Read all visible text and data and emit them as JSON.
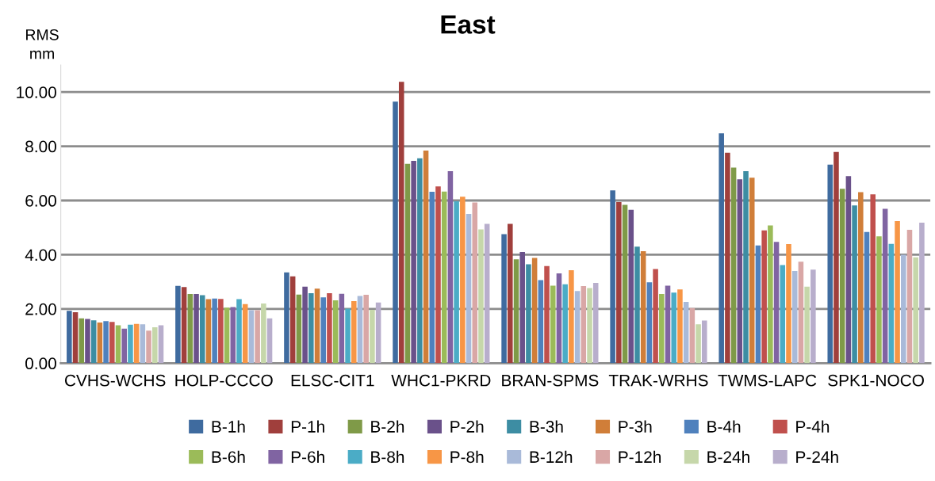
{
  "chart_data": {
    "type": "bar",
    "title": "East",
    "ylabel": "RMS\nmm",
    "categories": [
      "CVHS-WCHS",
      "HOLP-CCCO",
      "ELSC-CIT1",
      "WHC1-PKRD",
      "BRAN-SPMS",
      "TRAK-WRHS",
      "TWMS-LAPC",
      "SPK1-NOCO"
    ],
    "series": [
      {
        "name": "B-1h",
        "color": "#3f6b9f",
        "values": [
          1.93,
          2.85,
          3.35,
          9.65,
          4.76,
          6.37,
          8.48,
          7.32
        ]
      },
      {
        "name": "P-1h",
        "color": "#a03f3c",
        "values": [
          1.88,
          2.81,
          3.2,
          10.38,
          5.14,
          5.94,
          7.76,
          7.79
        ]
      },
      {
        "name": "B-2h",
        "color": "#7f9a48",
        "values": [
          1.65,
          2.55,
          2.53,
          7.35,
          3.83,
          5.84,
          7.21,
          6.43
        ]
      },
      {
        "name": "P-2h",
        "color": "#6a518a",
        "values": [
          1.63,
          2.55,
          2.82,
          7.46,
          4.1,
          5.66,
          6.78,
          6.9
        ]
      },
      {
        "name": "B-3h",
        "color": "#3d8da3",
        "values": [
          1.58,
          2.51,
          2.58,
          7.56,
          3.65,
          4.3,
          7.08,
          5.82
        ]
      },
      {
        "name": "P-3h",
        "color": "#d07e39",
        "values": [
          1.5,
          2.36,
          2.75,
          7.84,
          3.88,
          4.13,
          6.84,
          6.31
        ]
      },
      {
        "name": "B-4h",
        "color": "#4f81bd",
        "values": [
          1.55,
          2.38,
          2.43,
          6.32,
          3.06,
          2.98,
          4.34,
          4.84
        ]
      },
      {
        "name": "P-4h",
        "color": "#c0504d",
        "values": [
          1.52,
          2.37,
          2.58,
          6.52,
          3.58,
          3.47,
          4.9,
          6.23
        ]
      },
      {
        "name": "B-6h",
        "color": "#9bbb59",
        "values": [
          1.4,
          2.05,
          2.32,
          6.33,
          2.86,
          2.55,
          5.08,
          4.68
        ]
      },
      {
        "name": "P-6h",
        "color": "#8064a2",
        "values": [
          1.27,
          2.07,
          2.56,
          7.08,
          3.31,
          2.86,
          4.47,
          5.69
        ]
      },
      {
        "name": "B-8h",
        "color": "#4bacc6",
        "values": [
          1.42,
          2.36,
          2.01,
          5.97,
          2.91,
          2.6,
          3.62,
          4.4
        ]
      },
      {
        "name": "P-8h",
        "color": "#f79646",
        "values": [
          1.45,
          2.18,
          2.29,
          6.14,
          3.43,
          2.72,
          4.39,
          5.24
        ]
      },
      {
        "name": "B-12h",
        "color": "#a9bad9",
        "values": [
          1.43,
          1.95,
          2.48,
          5.5,
          2.66,
          2.26,
          3.4,
          4.0
        ]
      },
      {
        "name": "P-12h",
        "color": "#d9a7a6",
        "values": [
          1.2,
          1.95,
          2.52,
          5.93,
          2.84,
          2.03,
          3.74,
          4.92
        ]
      },
      {
        "name": "B-24h",
        "color": "#c6d7aa",
        "values": [
          1.32,
          2.2,
          1.97,
          4.93,
          2.77,
          1.43,
          2.82,
          3.9
        ]
      },
      {
        "name": "P-24h",
        "color": "#b8aecc",
        "values": [
          1.4,
          1.65,
          2.24,
          5.14,
          2.96,
          1.57,
          3.45,
          5.18
        ]
      }
    ],
    "ylim": [
      0,
      11
    ],
    "yticks": [
      {
        "value": 0,
        "label": "0.00"
      },
      {
        "value": 2,
        "label": "2.00"
      },
      {
        "value": 4,
        "label": "4.00"
      },
      {
        "value": 6,
        "label": "6.00"
      },
      {
        "value": 8,
        "label": "8.00"
      },
      {
        "value": 10,
        "label": "10.00"
      }
    ],
    "grid": "y",
    "legend": "bottom"
  }
}
